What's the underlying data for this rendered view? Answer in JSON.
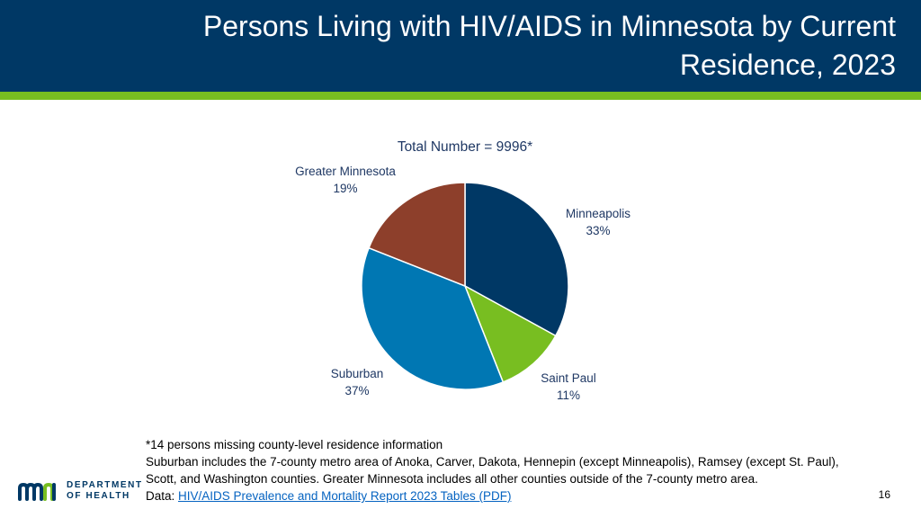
{
  "header": {
    "title_line1": "Persons Living with HIV/AIDS in Minnesota by Current",
    "title_line2": "Residence, 2023"
  },
  "chart_data": {
    "type": "pie",
    "title": "Total Number = 9996*",
    "slices": [
      {
        "label": "Minneapolis",
        "value": 33,
        "value_label": "33%",
        "color": "#003865"
      },
      {
        "label": "Saint Paul",
        "value": 11,
        "value_label": "11%",
        "color": "#78be21"
      },
      {
        "label": "Suburban",
        "value": 37,
        "value_label": "37%",
        "color": "#0077b3"
      },
      {
        "label": "Greater Minnesota",
        "value": 19,
        "value_label": "19%",
        "color": "#8d3f2b"
      }
    ]
  },
  "notes": {
    "footnote": "*14 persons missing county-level residence information",
    "definition": "Suburban includes the 7-county metro area of Anoka, Carver, Dakota, Hennepin (except Minneapolis), Ramsey (except St. Paul), Scott, and Washington counties. Greater Minnesota includes all other counties outside of the 7-county metro area.",
    "data_prefix": "Data: ",
    "data_link": "HIV/AIDS Prevalence and Mortality Report 2023 Tables (PDF)"
  },
  "logo": {
    "line1": "DEPARTMENT",
    "line2": "OF HEALTH"
  },
  "page_number": "16",
  "colors": {
    "header_bg": "#003865",
    "header_stripe": "#78be21",
    "label_text": "#1f3864"
  }
}
